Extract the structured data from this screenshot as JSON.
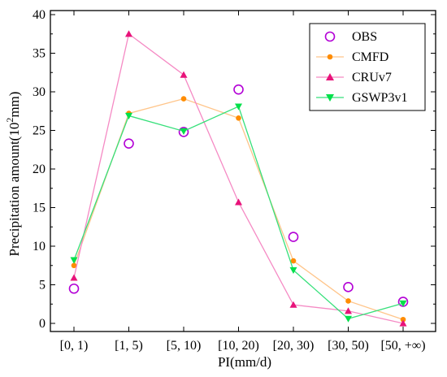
{
  "chart_data": {
    "type": "line",
    "categories": [
      "[0, 1)",
      "[1, 5)",
      "[5, 10)",
      "[10, 20)",
      "[20, 30)",
      "[30, 50)",
      "[50, +∞)"
    ],
    "xlabel": "PI(mm/d)",
    "ylabel_prefix": "Precipitation amount(10",
    "ylabel_sup": "2",
    "ylabel_suffix": "mm)",
    "ylim": [
      0,
      40
    ],
    "yticks": [
      0,
      5,
      10,
      15,
      20,
      25,
      30,
      35,
      40
    ],
    "legend_position": "top-right",
    "grid": false,
    "series": [
      {
        "name": "OBS",
        "marker": "open-circle",
        "line": false,
        "color": "#b300d6",
        "values": [
          4.5,
          23.3,
          24.8,
          30.3,
          11.2,
          4.7,
          2.8
        ]
      },
      {
        "name": "CMFD",
        "marker": "dot",
        "line": true,
        "color": "#ff8c00",
        "line_color": "#ffc58a",
        "values": [
          7.5,
          27.2,
          29.1,
          26.6,
          8.1,
          2.9,
          0.5
        ]
      },
      {
        "name": "CRUv7",
        "marker": "triangle-up",
        "line": true,
        "color": "#e8137a",
        "line_color": "#f58ac4",
        "values": [
          5.9,
          37.5,
          32.2,
          15.7,
          2.4,
          1.6,
          0.0
        ]
      },
      {
        "name": "GSWP3v1",
        "marker": "triangle-down",
        "line": true,
        "color": "#00e04a",
        "line_color": "#36e07a",
        "values": [
          8.2,
          26.9,
          24.9,
          28.1,
          6.9,
          0.6,
          2.6
        ]
      }
    ]
  }
}
